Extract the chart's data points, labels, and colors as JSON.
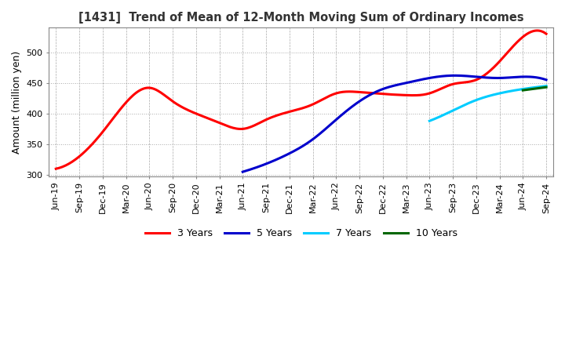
{
  "title": "[1431]  Trend of Mean of 12-Month Moving Sum of Ordinary Incomes",
  "ylabel": "Amount (million yen)",
  "ylim": [
    298,
    540
  ],
  "yticks": [
    300,
    350,
    400,
    450,
    500
  ],
  "line_colors": {
    "3y": "#ff0000",
    "5y": "#0000cc",
    "7y": "#00ccff",
    "10y": "#006600"
  },
  "legend_labels": [
    "3 Years",
    "5 Years",
    "7 Years",
    "10 Years"
  ],
  "x_labels": [
    "Jun-19",
    "Sep-19",
    "Dec-19",
    "Mar-20",
    "Jun-20",
    "Sep-20",
    "Dec-20",
    "Mar-21",
    "Jun-21",
    "Sep-21",
    "Dec-21",
    "Mar-22",
    "Jun-22",
    "Sep-22",
    "Dec-22",
    "Mar-23",
    "Jun-23",
    "Sep-23",
    "Dec-23",
    "Mar-24",
    "Jun-24",
    "Sep-24"
  ],
  "series_3y": [
    [
      0,
      310
    ],
    [
      1,
      330
    ],
    [
      2,
      370
    ],
    [
      3,
      418
    ],
    [
      4,
      442
    ],
    [
      5,
      420
    ],
    [
      6,
      400
    ],
    [
      7,
      385
    ],
    [
      8,
      375
    ],
    [
      9,
      390
    ],
    [
      10,
      403
    ],
    [
      11,
      415
    ],
    [
      12,
      433
    ],
    [
      13,
      435
    ],
    [
      14,
      432
    ],
    [
      15,
      430
    ],
    [
      16,
      433
    ],
    [
      17,
      448
    ],
    [
      18,
      455
    ],
    [
      19,
      485
    ],
    [
      20,
      525
    ],
    [
      21,
      530
    ]
  ],
  "series_5y": [
    [
      8,
      305
    ],
    [
      9,
      318
    ],
    [
      10,
      335
    ],
    [
      11,
      358
    ],
    [
      12,
      390
    ],
    [
      13,
      420
    ],
    [
      14,
      440
    ],
    [
      15,
      450
    ],
    [
      16,
      458
    ],
    [
      17,
      462
    ],
    [
      18,
      460
    ],
    [
      19,
      458
    ],
    [
      20,
      460
    ],
    [
      21,
      455
    ]
  ],
  "series_7y": [
    [
      16,
      388
    ],
    [
      17,
      405
    ],
    [
      18,
      422
    ],
    [
      19,
      433
    ],
    [
      20,
      440
    ],
    [
      21,
      445
    ]
  ],
  "series_10y": [
    [
      20,
      438
    ],
    [
      21,
      443
    ]
  ]
}
